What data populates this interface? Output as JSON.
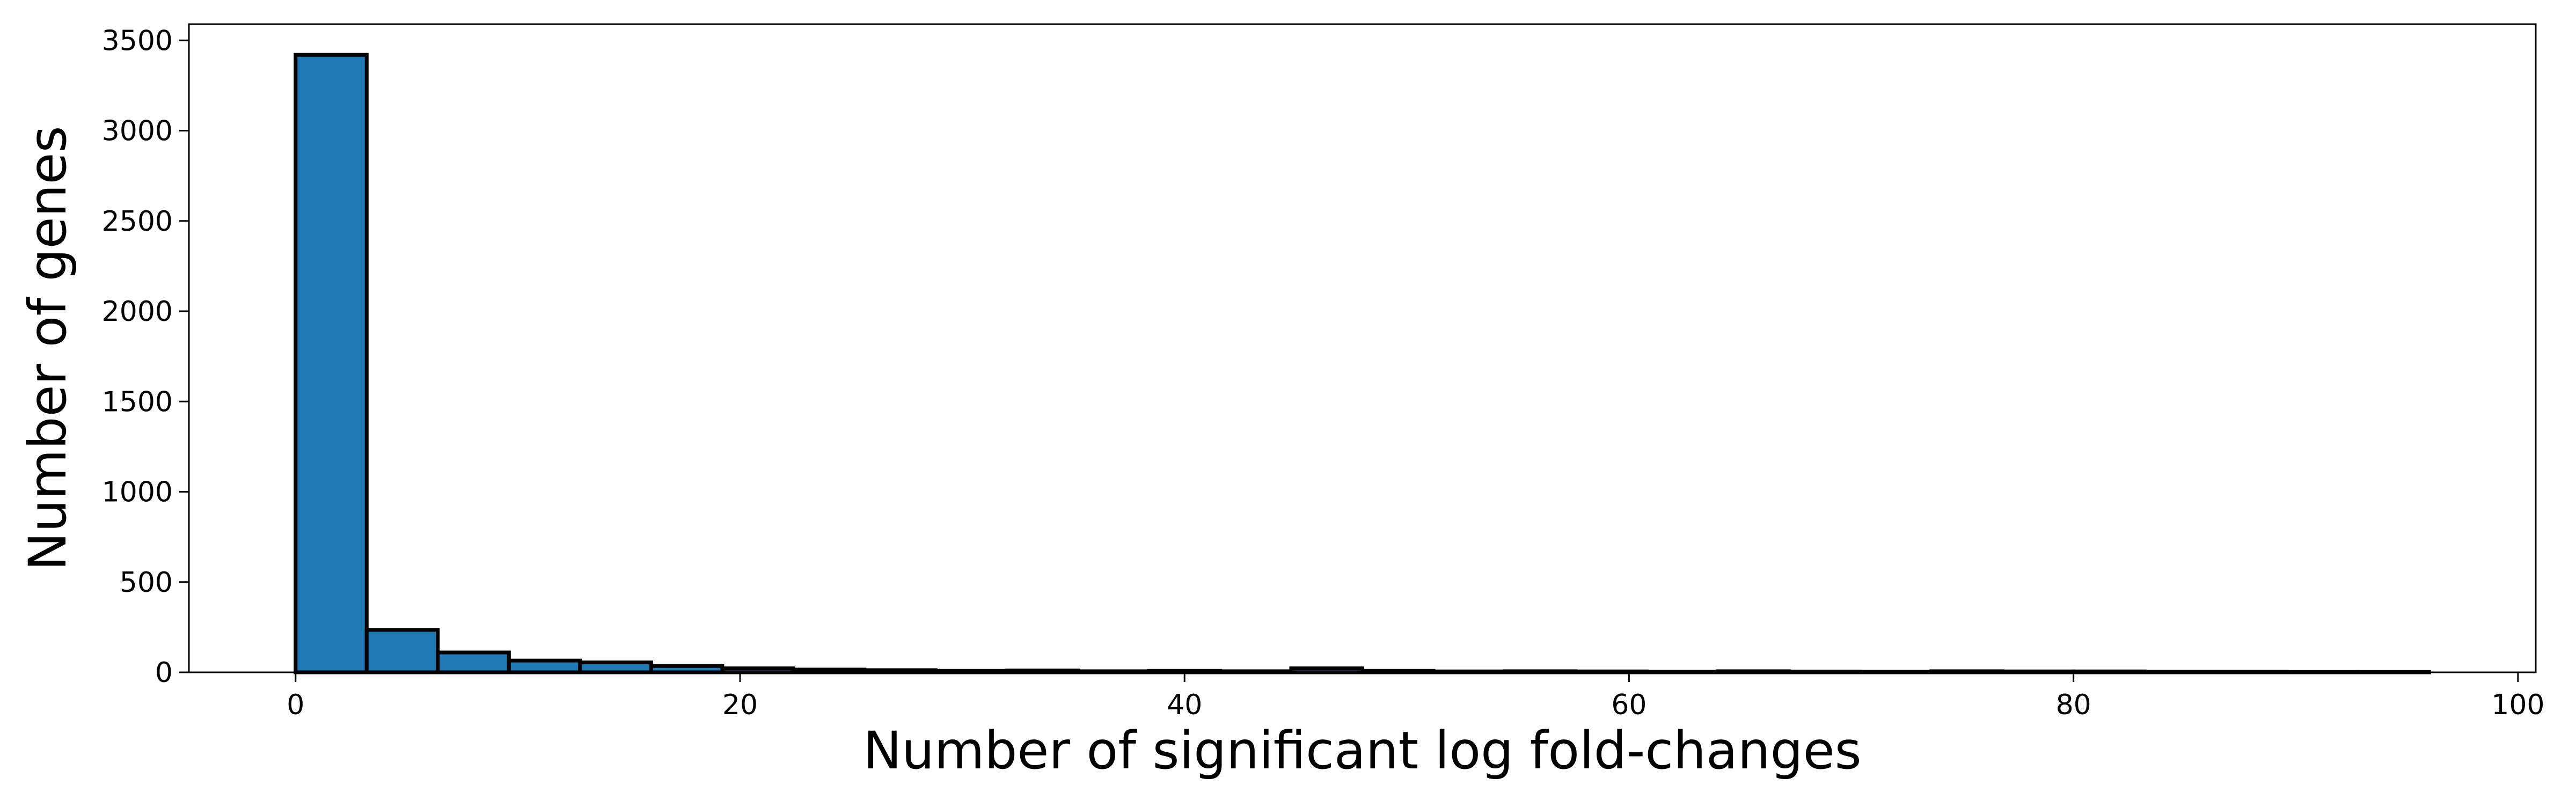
{
  "chart_data": {
    "type": "bar",
    "title": "",
    "xlabel": "Number of significant log fold-changes",
    "ylabel": "Number of genes",
    "xlim": [
      -4.8,
      100.8
    ],
    "ylim": [
      0,
      3590
    ],
    "grid": false,
    "bar_color": "#1f77b4",
    "edge_color": "#000000",
    "bin_width": 3.2,
    "bins": [
      {
        "x0": 0.0,
        "x1": 3.2,
        "value": 3420
      },
      {
        "x0": 3.2,
        "x1": 6.4,
        "value": 235
      },
      {
        "x0": 6.4,
        "x1": 9.6,
        "value": 110
      },
      {
        "x0": 9.6,
        "x1": 12.8,
        "value": 65
      },
      {
        "x0": 12.8,
        "x1": 16.0,
        "value": 55
      },
      {
        "x0": 16.0,
        "x1": 19.2,
        "value": 35
      },
      {
        "x0": 19.2,
        "x1": 22.4,
        "value": 22
      },
      {
        "x0": 22.4,
        "x1": 25.6,
        "value": 15
      },
      {
        "x0": 25.6,
        "x1": 28.8,
        "value": 12
      },
      {
        "x0": 28.8,
        "x1": 32.0,
        "value": 8
      },
      {
        "x0": 32.0,
        "x1": 35.2,
        "value": 10
      },
      {
        "x0": 35.2,
        "x1": 38.4,
        "value": 6
      },
      {
        "x0": 38.4,
        "x1": 41.6,
        "value": 8
      },
      {
        "x0": 41.6,
        "x1": 44.8,
        "value": 6
      },
      {
        "x0": 44.8,
        "x1": 48.0,
        "value": 22
      },
      {
        "x0": 48.0,
        "x1": 51.2,
        "value": 8
      },
      {
        "x0": 51.2,
        "x1": 54.4,
        "value": 5
      },
      {
        "x0": 54.4,
        "x1": 57.6,
        "value": 6
      },
      {
        "x0": 57.6,
        "x1": 60.8,
        "value": 5
      },
      {
        "x0": 60.8,
        "x1": 64.0,
        "value": 3
      },
      {
        "x0": 64.0,
        "x1": 67.2,
        "value": 6
      },
      {
        "x0": 67.2,
        "x1": 70.4,
        "value": 4
      },
      {
        "x0": 70.4,
        "x1": 73.6,
        "value": 3
      },
      {
        "x0": 73.6,
        "x1": 76.8,
        "value": 6
      },
      {
        "x0": 76.8,
        "x1": 80.0,
        "value": 5
      },
      {
        "x0": 80.0,
        "x1": 83.2,
        "value": 5
      },
      {
        "x0": 83.2,
        "x1": 86.4,
        "value": 3
      },
      {
        "x0": 86.4,
        "x1": 89.6,
        "value": 3
      },
      {
        "x0": 89.6,
        "x1": 92.8,
        "value": 2
      },
      {
        "x0": 92.8,
        "x1": 96.0,
        "value": 2
      }
    ],
    "x_ticks": [
      {
        "value": 0,
        "label": "0"
      },
      {
        "value": 20,
        "label": "20"
      },
      {
        "value": 40,
        "label": "40"
      },
      {
        "value": 60,
        "label": "60"
      },
      {
        "value": 80,
        "label": "80"
      },
      {
        "value": 100,
        "label": "100"
      }
    ],
    "y_ticks": [
      {
        "value": 0,
        "label": "0"
      },
      {
        "value": 500,
        "label": "500"
      },
      {
        "value": 1000,
        "label": "1000"
      },
      {
        "value": 1500,
        "label": "1500"
      },
      {
        "value": 2000,
        "label": "2000"
      },
      {
        "value": 2500,
        "label": "2500"
      },
      {
        "value": 3000,
        "label": "3000"
      },
      {
        "value": 3500,
        "label": "3500"
      }
    ]
  }
}
